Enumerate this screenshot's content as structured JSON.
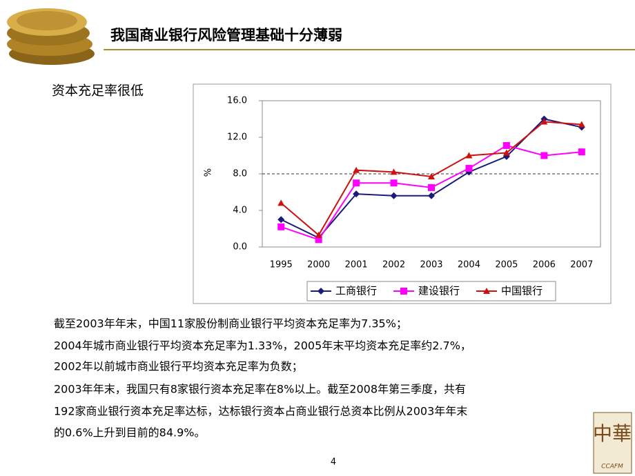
{
  "header": {
    "title": "我国商业银行风险管理基础十分薄弱"
  },
  "subtitle": "资本充足率很低",
  "chart_data": {
    "type": "line",
    "ylabel": "%",
    "categories": [
      "1995",
      "2000",
      "2001",
      "2002",
      "2003",
      "2004",
      "2005",
      "2006",
      "2007"
    ],
    "series": [
      {
        "name": "工商银行",
        "color": "#1a1a78",
        "marker": "diamond",
        "values": [
          3.0,
          1.0,
          5.8,
          5.6,
          5.6,
          8.2,
          9.9,
          14.0,
          13.1
        ]
      },
      {
        "name": "建设银行",
        "color": "#ff00ff",
        "marker": "square",
        "values": [
          2.2,
          0.8,
          7.0,
          7.0,
          6.5,
          8.6,
          11.1,
          10.0,
          10.4
        ]
      },
      {
        "name": "中国银行",
        "color": "#cc1111",
        "marker": "triangle",
        "values": [
          4.8,
          1.3,
          8.4,
          8.2,
          7.7,
          10.0,
          10.3,
          13.7,
          13.4
        ]
      }
    ],
    "ylim": [
      0,
      16
    ],
    "yticks": [
      {
        "value": 0,
        "label": "0.0"
      },
      {
        "value": 4,
        "label": "4.0"
      },
      {
        "value": 8,
        "label": "8.0"
      },
      {
        "value": 12,
        "label": "12.0"
      },
      {
        "value": 16,
        "label": "16.0"
      }
    ],
    "reference_line": 8,
    "legend": "bottom"
  },
  "notes": [
    "截至2003年年末，中国11家股份制商业银行平均资本充足率为7.35%；",
    "2004年城市商业银行平均资本充足率为1.33%，2005年末平均资本充足率约2.7%，",
    "2002年以前城市商业银行平均资本充足率为负数；",
    "2003年年末，我国只有8家银行资本充足率在8%以上。截至2008年第三季度，共有",
    "192家商业银行资本充足率达标，达标银行资本占商业银行总资本比例从2003年年末",
    "的0.6%上升到目前的84.9%。"
  ],
  "page_number": "4",
  "logo": {
    "mark": "中華",
    "text": "CCAFM"
  }
}
